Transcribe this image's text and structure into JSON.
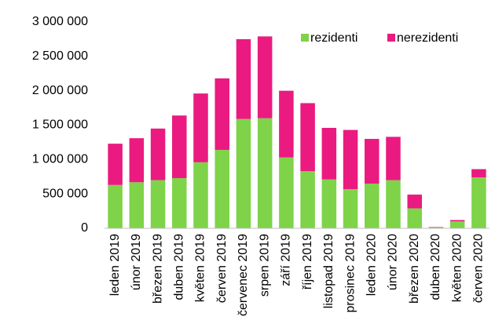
{
  "chart_data": {
    "type": "stacked_bar",
    "categories": [
      "leden 2019",
      "únor 2019",
      "březen 2019",
      "duben 2019",
      "květen 2019",
      "červen 2019",
      "červenec 2019",
      "srpen 2019",
      "září 2019",
      "říjen 2019",
      "listopad 2019",
      "prosinec 2019",
      "leden 2020",
      "únor 2020",
      "březen 2020",
      "duben 2020",
      "květen 2020",
      "červen 2020"
    ],
    "series": [
      {
        "name": "rezidenti",
        "color": "#7ed348",
        "values": [
          630000,
          670000,
          700000,
          730000,
          960000,
          1140000,
          1590000,
          1600000,
          1030000,
          830000,
          710000,
          570000,
          650000,
          700000,
          290000,
          15000,
          100000,
          740000
        ]
      },
      {
        "name": "nerezidenti",
        "color": "#ea1a80",
        "values": [
          600000,
          640000,
          750000,
          910000,
          1000000,
          1040000,
          1160000,
          1190000,
          970000,
          990000,
          750000,
          860000,
          650000,
          630000,
          200000,
          5000,
          20000,
          120000
        ]
      }
    ],
    "ylim": [
      0,
      3000000
    ],
    "yticks": [
      0,
      {
        "value": 500000,
        "label": "500 000"
      },
      {
        "value": 1000000,
        "label": "1 000 000"
      },
      {
        "value": 1500000,
        "label": "1 500 000"
      },
      {
        "value": 2000000,
        "label": "2 000 000"
      },
      {
        "value": 2500000,
        "label": "2 500 000"
      },
      {
        "value": 3000000,
        "label": "3 000 000"
      }
    ],
    "legend": "top-right"
  }
}
